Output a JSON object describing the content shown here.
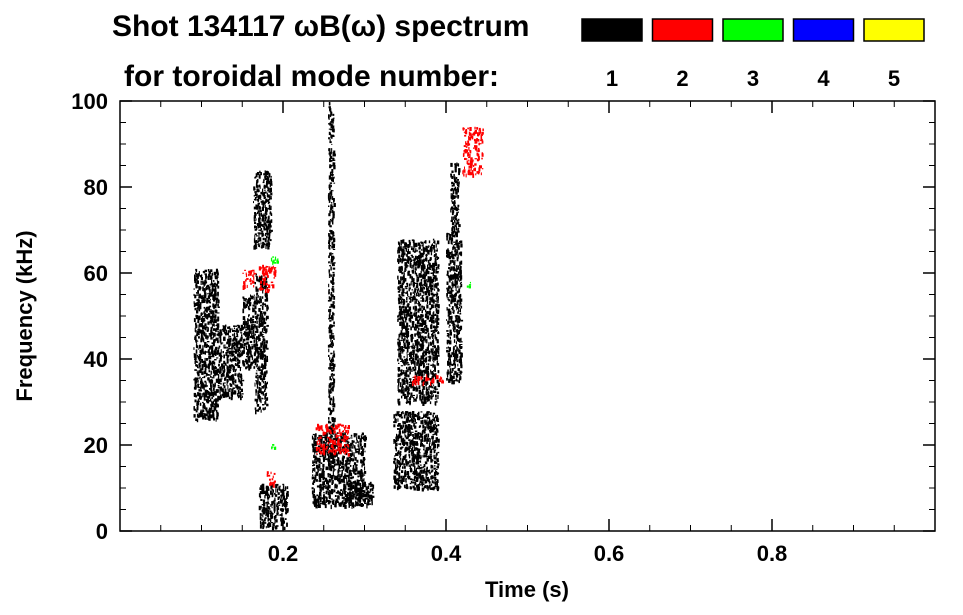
{
  "chart_data": {
    "type": "heatmap",
    "title": "Shot 134117 ωB(ω) spectrum",
    "subtitle": "for toroidal mode number:",
    "xlabel": "Time (s)",
    "ylabel": "Frequency (kHz)",
    "xlim": [
      0.0,
      1.0
    ],
    "ylim": [
      0,
      100
    ],
    "x_ticks": [
      0.2,
      0.4,
      0.6,
      0.8
    ],
    "x_tick_labels": [
      "0.2",
      "0.4",
      "0.6",
      "0.8"
    ],
    "y_ticks": [
      0,
      20,
      40,
      60,
      80,
      100
    ],
    "y_tick_labels": [
      "0",
      "20",
      "40",
      "60",
      "80",
      "100"
    ],
    "x_minor_step": 0.05,
    "y_minor_step": 5,
    "legend": [
      {
        "label": "1",
        "color": "#000000"
      },
      {
        "label": "2",
        "color": "#ff0000"
      },
      {
        "label": "3",
        "color": "#00ff00"
      },
      {
        "label": "4",
        "color": "#0000ff"
      },
      {
        "label": "5",
        "color": "#ffff00"
      }
    ],
    "regions": [
      {
        "mode": 1,
        "t": [
          0.09,
          0.12
        ],
        "f": [
          26,
          61
        ]
      },
      {
        "mode": 1,
        "t": [
          0.12,
          0.15
        ],
        "f": [
          31,
          48
        ]
      },
      {
        "mode": 1,
        "t": [
          0.15,
          0.165
        ],
        "f": [
          38,
          55
        ]
      },
      {
        "mode": 1,
        "t": [
          0.163,
          0.185
        ],
        "f": [
          66,
          84
        ]
      },
      {
        "mode": 1,
        "t": [
          0.165,
          0.18
        ],
        "f": [
          28,
          60
        ]
      },
      {
        "mode": 1,
        "t": [
          0.17,
          0.205
        ],
        "f": [
          1,
          11
        ]
      },
      {
        "mode": 1,
        "t": [
          0.235,
          0.3
        ],
        "f": [
          6,
          23
        ]
      },
      {
        "mode": 1,
        "t": [
          0.28,
          0.31
        ],
        "f": [
          6,
          12
        ]
      },
      {
        "mode": 1,
        "t": [
          0.335,
          0.39
        ],
        "f": [
          10,
          28
        ]
      },
      {
        "mode": 1,
        "t": [
          0.4,
          0.418
        ],
        "f": [
          35,
          70
        ]
      },
      {
        "mode": 1,
        "t": [
          0.405,
          0.415
        ],
        "f": [
          70,
          86
        ]
      },
      {
        "mode": 1,
        "t": [
          0.255,
          0.262
        ],
        "f": [
          15,
          100
        ]
      },
      {
        "mode": 1,
        "t": [
          0.34,
          0.39
        ],
        "f": [
          30,
          68
        ]
      },
      {
        "mode": 2,
        "t": [
          0.17,
          0.19
        ],
        "f": [
          56,
          62
        ]
      },
      {
        "mode": 2,
        "t": [
          0.355,
          0.395
        ],
        "f": [
          34.5,
          36.5
        ]
      },
      {
        "mode": 2,
        "t": [
          0.24,
          0.28
        ],
        "f": [
          18,
          25
        ]
      },
      {
        "mode": 2,
        "t": [
          0.42,
          0.445
        ],
        "f": [
          83,
          94
        ]
      },
      {
        "mode": 2,
        "t": [
          0.15,
          0.165
        ],
        "f": [
          57,
          61
        ]
      },
      {
        "mode": 2,
        "t": [
          0.18,
          0.19
        ],
        "f": [
          11,
          14
        ]
      },
      {
        "mode": 3,
        "t": [
          0.185,
          0.195
        ],
        "f": [
          62,
          64
        ]
      },
      {
        "mode": 3,
        "t": [
          0.185,
          0.19
        ],
        "f": [
          19,
          21
        ]
      },
      {
        "mode": 3,
        "t": [
          0.425,
          0.43
        ],
        "f": [
          57,
          59
        ]
      }
    ]
  }
}
